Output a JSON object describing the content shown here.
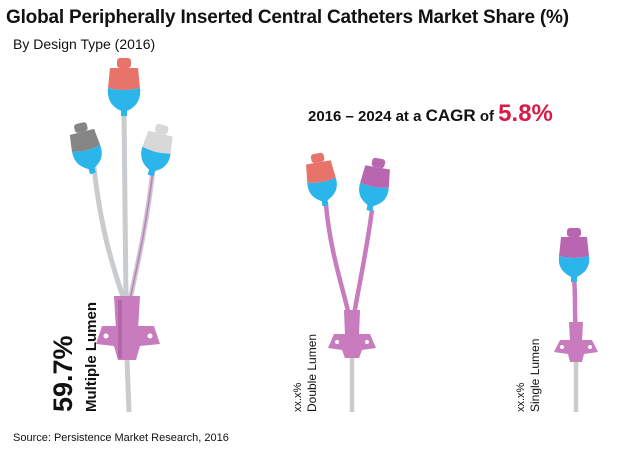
{
  "title": "Global Peripherally Inserted Central Catheters Market Share (%)",
  "subtitle": "By Design Type (2016)",
  "cagr": {
    "prefix": "2016 – 2024 at a ",
    "label": "CAGR",
    "middle": " of ",
    "value": "5.8%"
  },
  "source": "Source: Persistence Market Research, 2016",
  "colors": {
    "accent": "#d81b47",
    "hub": "#c87cbe",
    "hub_dark": "#9c4f94",
    "cap_salmon": "#e8736a",
    "cap_gray": "#858585",
    "cap_light": "#d8d8d8",
    "cap_purple": "#b966b0",
    "blue": "#2bb5ea",
    "tube": "#c9cccf"
  },
  "chart_data": {
    "type": "bar",
    "title": "Global Peripherally Inserted Central Catheters Market Share (%)",
    "subtitle": "By Design Type (2016)",
    "categories": [
      "Multiple Lumen",
      "Double Lumen",
      "Single Lumen"
    ],
    "values": [
      59.7,
      null,
      null
    ],
    "value_labels": [
      "59.7%",
      "xx.x%",
      "xx.x%"
    ],
    "annotation": "2016 – 2024 at a CAGR of 5.8%"
  }
}
